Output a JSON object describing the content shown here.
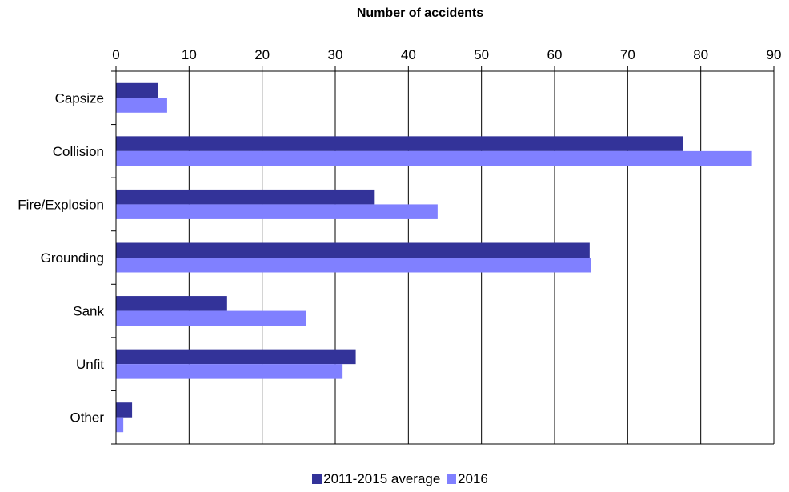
{
  "chart_data": {
    "type": "bar",
    "orientation": "horizontal",
    "title": "Number of accidents",
    "categories": [
      "Capsize",
      "Collision",
      "Fire/Explosion",
      "Grounding",
      "Sank",
      "Unfit",
      "Other"
    ],
    "series": [
      {
        "name": "2011-2015 average",
        "color": "#333399",
        "values": [
          5.8,
          77.6,
          35.4,
          64.8,
          15.2,
          32.8,
          2.2
        ]
      },
      {
        "name": "2016",
        "color": "#8080ff",
        "values": [
          7,
          87,
          44,
          65,
          26,
          31,
          1
        ]
      }
    ],
    "xlim": [
      0,
      90
    ],
    "xticks": [
      0,
      10,
      20,
      30,
      40,
      50,
      60,
      70,
      80,
      90
    ],
    "grid": true,
    "legend_position": "bottom"
  },
  "colors": {
    "axis": "#000000",
    "grid": "#000000"
  }
}
